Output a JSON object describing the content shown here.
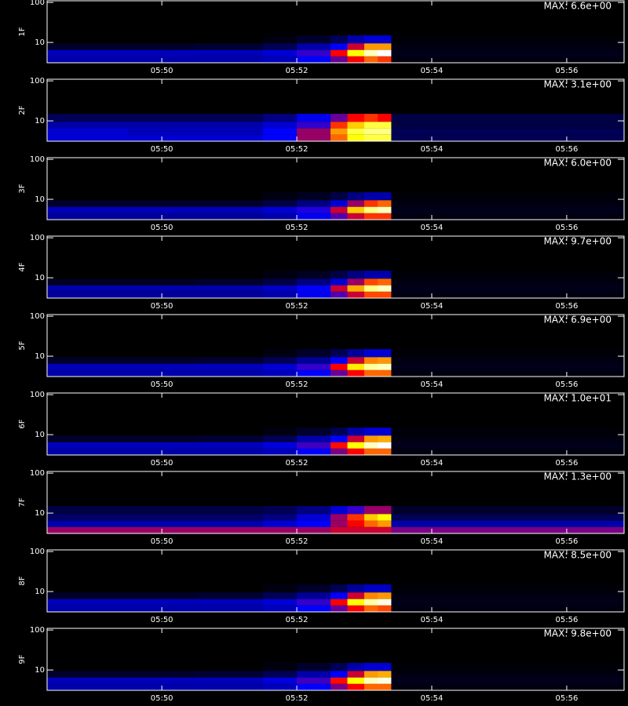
{
  "colorscale": [
    [
      0,
      "#000000"
    ],
    [
      0.3,
      "#0000ff"
    ],
    [
      0.55,
      "#ff0000"
    ],
    [
      0.8,
      "#ffff00"
    ],
    [
      1,
      "#ffffff"
    ]
  ],
  "chart_data": [
    {
      "type": "heatmap",
      "ylabel": "1F",
      "annotation": "MAX: 6.6e+00",
      "log_y": true,
      "x_edges": [
        48.3,
        49.5,
        50.5,
        51.5,
        52.0,
        52.5,
        52.75,
        53.0,
        53.2,
        53.4,
        56.85
      ],
      "y_edges": [
        3.1,
        4.5,
        6.5,
        9.5,
        15
      ],
      "z": [
        [
          0.2,
          0.2,
          0.2,
          0.22,
          0.3,
          0.4,
          0.55,
          0.65,
          0.6,
          0.02
        ],
        [
          0.22,
          0.22,
          0.22,
          0.25,
          0.35,
          0.55,
          0.8,
          0.95,
          1.0,
          0.03
        ],
        [
          0.05,
          0.05,
          0.06,
          0.1,
          0.2,
          0.3,
          0.5,
          0.7,
          0.7,
          0.02
        ],
        [
          0,
          0,
          0,
          0.02,
          0.05,
          0.1,
          0.2,
          0.25,
          0.25,
          0.01
        ]
      ],
      "xlim": [
        48.3,
        56.85
      ],
      "ylim": [
        3.1,
        110
      ],
      "xticks": [
        {
          "value": 50,
          "label": "05:50"
        },
        {
          "value": 52,
          "label": "05:52"
        },
        {
          "value": 54,
          "label": "05:54"
        },
        {
          "value": 56,
          "label": "05:56"
        }
      ],
      "yticks": [
        10,
        100
      ]
    },
    {
      "type": "heatmap",
      "ylabel": "2F",
      "annotation": "MAX: 3.1e+00",
      "log_y": true,
      "x_edges": [
        48.3,
        49.5,
        50.5,
        51.5,
        52.0,
        52.5,
        52.75,
        53.0,
        53.2,
        53.4,
        56.85
      ],
      "y_edges": [
        3.1,
        4.5,
        6.5,
        9.5,
        15
      ],
      "z": [
        [
          0.25,
          0.25,
          0.25,
          0.3,
          0.45,
          0.65,
          0.8,
          0.85,
          0.85,
          0.1
        ],
        [
          0.25,
          0.22,
          0.22,
          0.3,
          0.45,
          0.7,
          0.85,
          0.9,
          0.9,
          0.1
        ],
        [
          0.2,
          0.2,
          0.2,
          0.25,
          0.35,
          0.6,
          0.75,
          0.85,
          0.85,
          0.08
        ],
        [
          0.1,
          0.1,
          0.1,
          0.15,
          0.28,
          0.4,
          0.55,
          0.6,
          0.55,
          0.08
        ]
      ],
      "xlim": [
        48.3,
        56.85
      ],
      "ylim": [
        3.1,
        110
      ],
      "xticks": [
        {
          "value": 50,
          "label": "05:50"
        },
        {
          "value": 52,
          "label": "05:52"
        },
        {
          "value": 54,
          "label": "05:54"
        },
        {
          "value": 56,
          "label": "05:56"
        }
      ],
      "yticks": [
        10,
        100
      ]
    },
    {
      "type": "heatmap",
      "ylabel": "3F",
      "annotation": "MAX: 6.0e+00",
      "log_y": true,
      "x_edges": [
        48.3,
        49.5,
        50.5,
        51.5,
        52.0,
        52.5,
        52.75,
        53.0,
        53.2,
        53.4,
        56.85
      ],
      "y_edges": [
        3.1,
        4.5,
        6.5,
        9.5,
        15
      ],
      "z": [
        [
          0.18,
          0.18,
          0.18,
          0.2,
          0.28,
          0.38,
          0.5,
          0.6,
          0.6,
          0.02
        ],
        [
          0.22,
          0.22,
          0.22,
          0.25,
          0.33,
          0.5,
          0.75,
          0.9,
          0.95,
          0.03
        ],
        [
          0.05,
          0.05,
          0.05,
          0.08,
          0.15,
          0.25,
          0.45,
          0.6,
          0.65,
          0.02
        ],
        [
          0,
          0,
          0,
          0.02,
          0.04,
          0.08,
          0.15,
          0.2,
          0.2,
          0.01
        ]
      ],
      "xlim": [
        48.3,
        56.85
      ],
      "ylim": [
        3.1,
        110
      ],
      "xticks": [
        {
          "value": 50,
          "label": "05:50"
        },
        {
          "value": 52,
          "label": "05:52"
        },
        {
          "value": 54,
          "label": "05:54"
        },
        {
          "value": 56,
          "label": "05:56"
        }
      ],
      "yticks": [
        10,
        100
      ]
    },
    {
      "type": "heatmap",
      "ylabel": "4F",
      "annotation": "MAX: 9.7e+00",
      "log_y": true,
      "x_edges": [
        48.3,
        49.5,
        50.5,
        51.5,
        52.0,
        52.5,
        52.75,
        53.0,
        53.2,
        53.4,
        56.85
      ],
      "y_edges": [
        3.1,
        4.5,
        6.5,
        9.5,
        15
      ],
      "z": [
        [
          0.18,
          0.18,
          0.18,
          0.2,
          0.28,
          0.38,
          0.5,
          0.62,
          0.62,
          0.02
        ],
        [
          0.2,
          0.2,
          0.2,
          0.23,
          0.3,
          0.5,
          0.72,
          0.9,
          0.95,
          0.03
        ],
        [
          0.04,
          0.04,
          0.05,
          0.08,
          0.15,
          0.25,
          0.45,
          0.62,
          0.65,
          0.02
        ],
        [
          0,
          0,
          0,
          0.02,
          0.04,
          0.08,
          0.15,
          0.2,
          0.2,
          0.01
        ]
      ],
      "xlim": [
        48.3,
        56.85
      ],
      "ylim": [
        3.1,
        110
      ],
      "xticks": [
        {
          "value": 50,
          "label": "05:50"
        },
        {
          "value": 52,
          "label": "05:52"
        },
        {
          "value": 54,
          "label": "05:54"
        },
        {
          "value": 56,
          "label": "05:56"
        }
      ],
      "yticks": [
        10,
        100
      ]
    },
    {
      "type": "heatmap",
      "ylabel": "5F",
      "annotation": "MAX: 6.9e+00",
      "log_y": true,
      "x_edges": [
        48.3,
        49.5,
        50.5,
        51.5,
        52.0,
        52.5,
        52.75,
        53.0,
        53.2,
        53.4,
        56.85
      ],
      "y_edges": [
        3.1,
        4.5,
        6.5,
        9.5,
        15
      ],
      "z": [
        [
          0.2,
          0.2,
          0.2,
          0.22,
          0.3,
          0.4,
          0.55,
          0.65,
          0.65,
          0.02
        ],
        [
          0.22,
          0.22,
          0.22,
          0.25,
          0.35,
          0.55,
          0.78,
          0.92,
          0.95,
          0.03
        ],
        [
          0.05,
          0.05,
          0.06,
          0.1,
          0.18,
          0.3,
          0.5,
          0.68,
          0.7,
          0.02
        ],
        [
          0,
          0,
          0,
          0.02,
          0.05,
          0.1,
          0.18,
          0.25,
          0.25,
          0.01
        ]
      ],
      "xlim": [
        48.3,
        56.85
      ],
      "ylim": [
        3.1,
        110
      ],
      "xticks": [
        {
          "value": 50,
          "label": "05:50"
        },
        {
          "value": 52,
          "label": "05:52"
        },
        {
          "value": 54,
          "label": "05:54"
        },
        {
          "value": 56,
          "label": "05:56"
        }
      ],
      "yticks": [
        10,
        100
      ]
    },
    {
      "type": "heatmap",
      "ylabel": "6F",
      "annotation": "MAX: 1.0e+01",
      "log_y": true,
      "x_edges": [
        48.3,
        49.5,
        50.5,
        51.5,
        52.0,
        52.5,
        52.75,
        53.0,
        53.2,
        53.4,
        56.85
      ],
      "y_edges": [
        3.1,
        4.5,
        6.5,
        9.5,
        15
      ],
      "z": [
        [
          0.2,
          0.2,
          0.2,
          0.22,
          0.3,
          0.42,
          0.55,
          0.65,
          0.65,
          0.02
        ],
        [
          0.22,
          0.22,
          0.22,
          0.26,
          0.36,
          0.56,
          0.8,
          0.95,
          1.0,
          0.03
        ],
        [
          0.05,
          0.05,
          0.06,
          0.1,
          0.2,
          0.3,
          0.5,
          0.7,
          0.72,
          0.02
        ],
        [
          0,
          0,
          0,
          0.02,
          0.05,
          0.1,
          0.2,
          0.25,
          0.25,
          0.01
        ]
      ],
      "xlim": [
        48.3,
        56.85
      ],
      "ylim": [
        3.1,
        110
      ],
      "xticks": [
        {
          "value": 50,
          "label": "05:50"
        },
        {
          "value": 52,
          "label": "05:52"
        },
        {
          "value": 54,
          "label": "05:54"
        },
        {
          "value": 56,
          "label": "05:56"
        }
      ],
      "yticks": [
        10,
        100
      ]
    },
    {
      "type": "heatmap",
      "ylabel": "7F",
      "annotation": "MAX: 1.3e+00",
      "log_y": true,
      "x_edges": [
        48.3,
        49.5,
        50.5,
        51.5,
        52.0,
        52.5,
        52.75,
        53.0,
        53.2,
        53.4,
        56.85
      ],
      "y_edges": [
        3.1,
        4.5,
        6.5,
        9.5,
        15
      ],
      "z": [
        [
          0.45,
          0.45,
          0.45,
          0.45,
          0.45,
          0.5,
          0.5,
          0.5,
          0.5,
          0.42
        ],
        [
          0.2,
          0.2,
          0.2,
          0.25,
          0.3,
          0.45,
          0.55,
          0.65,
          0.7,
          0.2
        ],
        [
          0.12,
          0.12,
          0.12,
          0.15,
          0.25,
          0.45,
          0.6,
          0.75,
          0.8,
          0.1
        ],
        [
          0.08,
          0.08,
          0.08,
          0.1,
          0.15,
          0.25,
          0.35,
          0.45,
          0.45,
          0.05
        ]
      ],
      "xlim": [
        48.3,
        56.85
      ],
      "ylim": [
        3.1,
        110
      ],
      "xticks": [
        {
          "value": 50,
          "label": "05:50"
        },
        {
          "value": 52,
          "label": "05:52"
        },
        {
          "value": 54,
          "label": "05:54"
        },
        {
          "value": 56,
          "label": "05:56"
        }
      ],
      "yticks": [
        10,
        100
      ]
    },
    {
      "type": "heatmap",
      "ylabel": "8F",
      "annotation": "MAX: 8.5e+00",
      "log_y": true,
      "x_edges": [
        48.3,
        49.5,
        50.5,
        51.5,
        52.0,
        52.5,
        52.75,
        53.0,
        53.2,
        53.4,
        56.85
      ],
      "y_edges": [
        3.1,
        4.5,
        6.5,
        9.5,
        15
      ],
      "z": [
        [
          0.2,
          0.2,
          0.2,
          0.22,
          0.3,
          0.4,
          0.55,
          0.65,
          0.62,
          0.02
        ],
        [
          0.22,
          0.22,
          0.22,
          0.25,
          0.35,
          0.55,
          0.8,
          0.93,
          0.98,
          0.03
        ],
        [
          0.05,
          0.05,
          0.06,
          0.1,
          0.18,
          0.3,
          0.5,
          0.68,
          0.7,
          0.02
        ],
        [
          0,
          0,
          0,
          0.02,
          0.05,
          0.1,
          0.18,
          0.23,
          0.23,
          0.01
        ]
      ],
      "xlim": [
        48.3,
        56.85
      ],
      "ylim": [
        3.1,
        110
      ],
      "xticks": [
        {
          "value": 50,
          "label": "05:50"
        },
        {
          "value": 52,
          "label": "05:52"
        },
        {
          "value": 54,
          "label": "05:54"
        },
        {
          "value": 56,
          "label": "05:56"
        }
      ],
      "yticks": [
        10,
        100
      ]
    },
    {
      "type": "heatmap",
      "ylabel": "9F",
      "annotation": "MAX: 9.8e+00",
      "log_y": true,
      "x_edges": [
        48.3,
        49.5,
        50.5,
        51.5,
        52.0,
        52.5,
        52.75,
        53.0,
        53.2,
        53.4,
        56.85
      ],
      "y_edges": [
        3.1,
        4.5,
        6.5,
        9.5,
        15
      ],
      "z": [
        [
          0.2,
          0.2,
          0.2,
          0.22,
          0.3,
          0.42,
          0.55,
          0.65,
          0.65,
          0.02
        ],
        [
          0.22,
          0.22,
          0.22,
          0.26,
          0.36,
          0.56,
          0.8,
          0.95,
          0.98,
          0.03
        ],
        [
          0.05,
          0.05,
          0.06,
          0.1,
          0.2,
          0.3,
          0.5,
          0.7,
          0.72,
          0.02
        ],
        [
          0,
          0,
          0,
          0.02,
          0.05,
          0.1,
          0.2,
          0.25,
          0.25,
          0.01
        ]
      ],
      "xlim": [
        48.3,
        56.85
      ],
      "ylim": [
        3.1,
        110
      ],
      "xticks": [
        {
          "value": 50,
          "label": "05:50"
        },
        {
          "value": 52,
          "label": "05:52"
        },
        {
          "value": 54,
          "label": "05:54"
        },
        {
          "value": 56,
          "label": "05:56"
        }
      ],
      "yticks": [
        10,
        100
      ]
    }
  ]
}
